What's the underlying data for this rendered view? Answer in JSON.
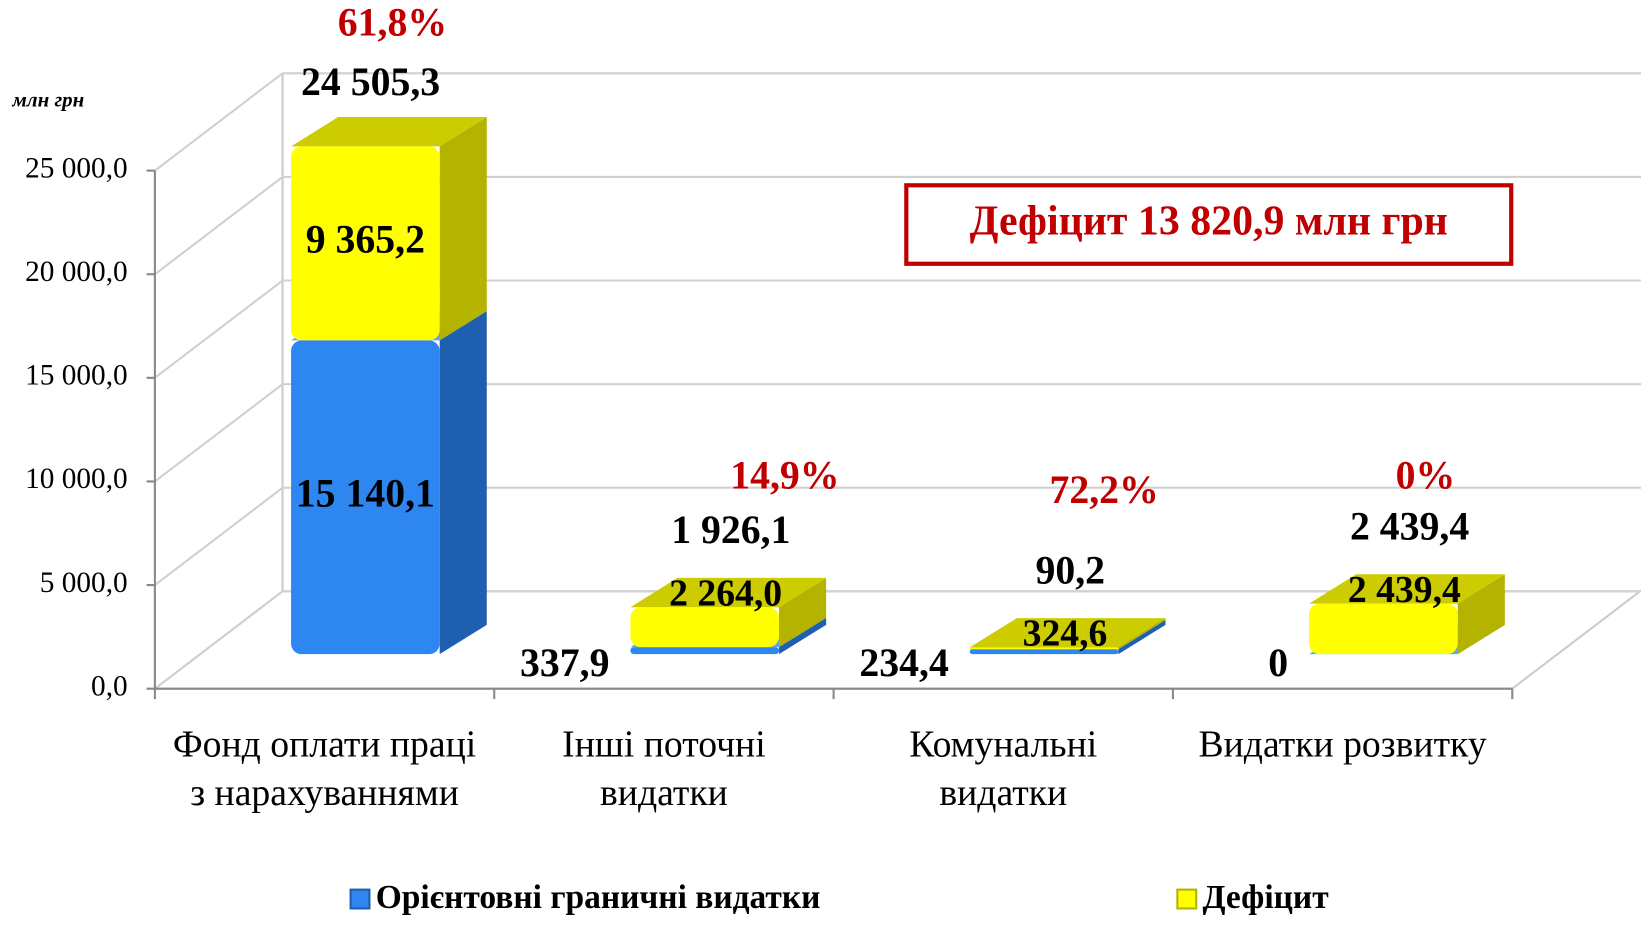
{
  "chart_data": {
    "type": "bar3d_stacked",
    "y_label": "млн грн",
    "categories": [
      "Фонд оплати праці з нарахуваннями",
      "Інші поточні видатки",
      "Комунальні видатки",
      "Видатки розвитку"
    ],
    "series": [
      {
        "name": "Орієнтовні граничні видатки",
        "color": "#2e86f0",
        "values": [
          15140.1,
          337.9,
          234.4,
          0
        ],
        "value_labels": [
          "15 140,1",
          "337,9",
          "234,4",
          "0"
        ]
      },
      {
        "name": "Дефіцит",
        "color": "#ffff00",
        "values": [
          9365.2,
          1926.1,
          90.2,
          2439.4
        ],
        "value_labels": [
          "9 365,2",
          "1 926,1",
          "90,2",
          "2 439,4"
        ]
      }
    ],
    "totals": [
      24505.3,
      2264.0,
      324.6,
      2439.4
    ],
    "totals_labels": [
      "24 505,3",
      "2 264,0",
      "324,6",
      "2 439,4"
    ],
    "shares": [
      61.8,
      14.9,
      72.2,
      0
    ],
    "shares_labels": [
      "61,8%",
      "14,9%",
      "72,2%",
      "0%"
    ],
    "annotation": "Дефіцит 13 820,9 млн грн",
    "ylim": [
      0,
      25000
    ],
    "yticks": [
      {
        "value": 0,
        "label": "0,0"
      },
      {
        "value": 5000,
        "label": "5 000,0"
      },
      {
        "value": 10000,
        "label": "10 000,0"
      },
      {
        "value": 15000,
        "label": "15 000,0"
      },
      {
        "value": 20000,
        "label": "20 000,0"
      },
      {
        "value": 25000,
        "label": "25 000,0"
      }
    ],
    "grid": true
  }
}
